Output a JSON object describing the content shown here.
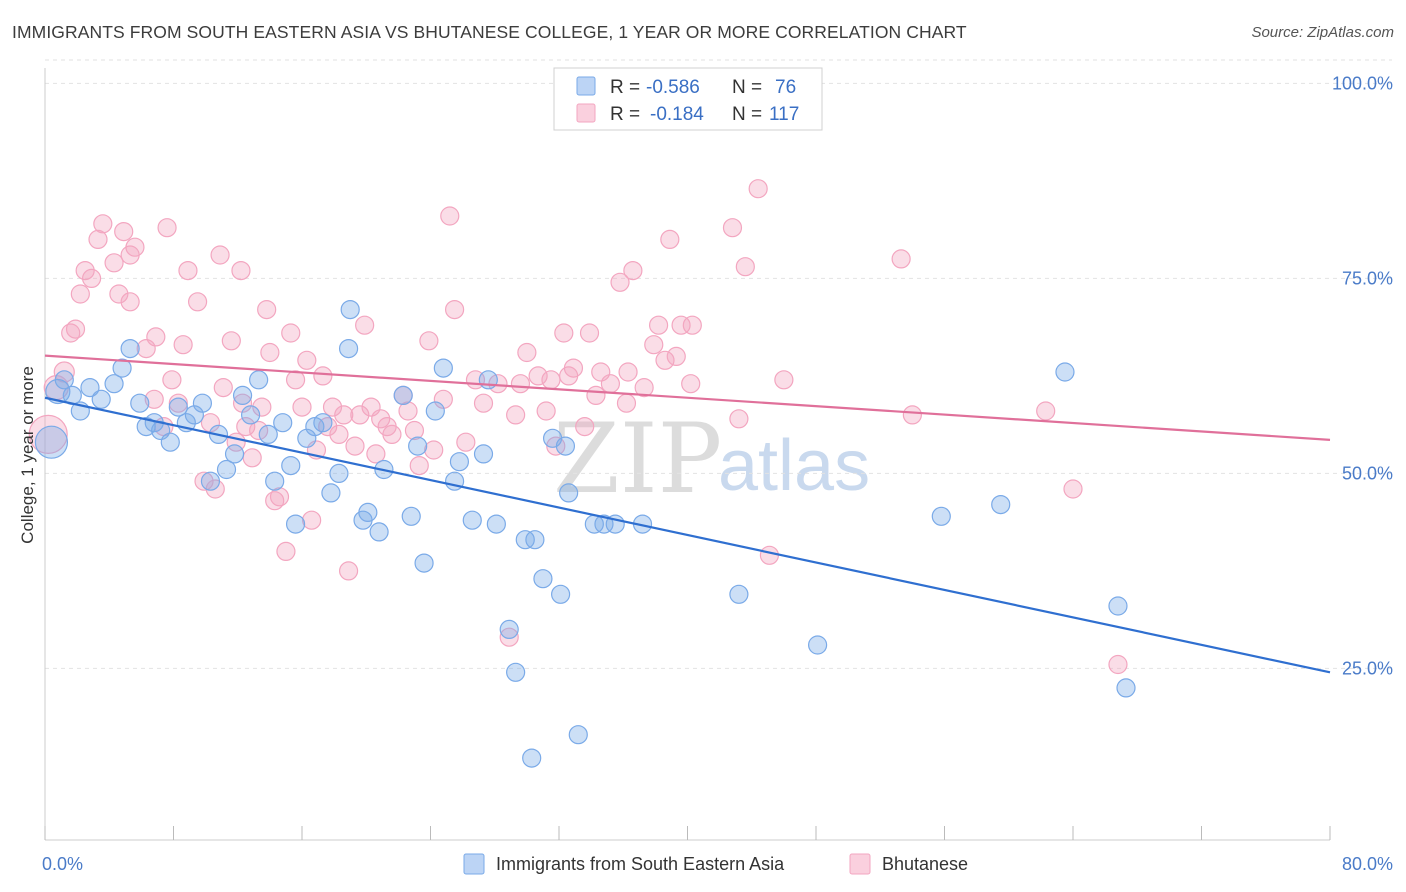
{
  "title": "IMMIGRANTS FROM SOUTH EASTERN ASIA VS BHUTANESE COLLEGE, 1 YEAR OR MORE CORRELATION CHART",
  "source": "Source: ZipAtlas.com",
  "watermark": {
    "zip": "ZIP",
    "atlas": "atlas"
  },
  "legend_top": {
    "rows": [
      {
        "r_label": "R =",
        "r_value": "-0.586",
        "n_label": "N =",
        "n_value": "76"
      },
      {
        "r_label": "R =",
        "r_value": "-0.184",
        "n_label": "N =",
        "n_value": "117"
      }
    ]
  },
  "chart_data": {
    "type": "scatter",
    "xlabel": "",
    "ylabel": "College, 1 year or more",
    "xlim": [
      0,
      80
    ],
    "ylim": [
      3,
      103
    ],
    "x_tick_labels": [
      "0.0%",
      "80.0%"
    ],
    "y_ticks": [
      25,
      50,
      75,
      100
    ],
    "y_tick_labels": [
      "25.0%",
      "50.0%",
      "75.0%",
      "100.0%"
    ],
    "grid": "horizontal dashed",
    "legend_position": "bottom",
    "series": [
      {
        "name": "Immigrants from South Eastern Asia",
        "color": "#7aaae8",
        "line_color": "#2f6fd0",
        "trend": {
          "x": [
            0,
            80
          ],
          "y": [
            59.7,
            24.5
          ]
        },
        "points": [
          [
            0.4,
            54,
            16
          ],
          [
            0.8,
            60.5,
            12
          ],
          [
            1.2,
            62,
            9
          ],
          [
            1.7,
            60,
            9
          ],
          [
            2.2,
            58,
            9
          ],
          [
            2.8,
            61,
            9
          ],
          [
            3.5,
            59.5,
            9
          ],
          [
            4.3,
            61.5,
            9
          ],
          [
            4.8,
            63.5,
            9
          ],
          [
            5.3,
            66,
            9
          ],
          [
            5.9,
            59,
            9
          ],
          [
            6.3,
            56,
            9
          ],
          [
            6.8,
            56.5,
            9
          ],
          [
            7.2,
            55.5,
            9
          ],
          [
            7.8,
            54,
            9
          ],
          [
            8.3,
            58.5,
            9
          ],
          [
            8.8,
            56.5,
            9
          ],
          [
            9.3,
            57.5,
            9
          ],
          [
            9.8,
            59,
            9
          ],
          [
            10.3,
            49,
            9
          ],
          [
            10.8,
            55,
            9
          ],
          [
            11.3,
            50.5,
            9
          ],
          [
            11.8,
            52.5,
            9
          ],
          [
            12.3,
            60,
            9
          ],
          [
            12.8,
            57.5,
            9
          ],
          [
            13.3,
            62,
            9
          ],
          [
            13.9,
            55,
            9
          ],
          [
            14.3,
            49,
            9
          ],
          [
            14.8,
            56.5,
            9
          ],
          [
            15.3,
            51,
            9
          ],
          [
            15.6,
            43.5,
            9
          ],
          [
            16.3,
            54.5,
            9
          ],
          [
            16.8,
            56,
            9
          ],
          [
            17.3,
            56.5,
            9
          ],
          [
            17.8,
            47.5,
            9
          ],
          [
            18.3,
            50,
            9
          ],
          [
            18.9,
            66,
            9
          ],
          [
            19.0,
            71,
            9
          ],
          [
            19.8,
            44,
            9
          ],
          [
            20.1,
            45,
            9
          ],
          [
            20.8,
            42.5,
            9
          ],
          [
            21.1,
            50.5,
            9
          ],
          [
            22.3,
            60,
            9
          ],
          [
            22.8,
            44.5,
            9
          ],
          [
            23.2,
            53.5,
            9
          ],
          [
            23.6,
            38.5,
            9
          ],
          [
            24.3,
            58,
            9
          ],
          [
            24.8,
            63.5,
            9
          ],
          [
            25.5,
            49,
            9
          ],
          [
            25.8,
            51.5,
            9
          ],
          [
            26.6,
            44,
            9
          ],
          [
            27.3,
            52.5,
            9
          ],
          [
            27.6,
            62,
            9
          ],
          [
            28.1,
            43.5,
            9
          ],
          [
            28.9,
            30,
            9
          ],
          [
            29.3,
            24.5,
            9
          ],
          [
            29.9,
            41.5,
            9
          ],
          [
            30.5,
            41.5,
            9
          ],
          [
            30.3,
            13.5,
            9
          ],
          [
            31.0,
            36.5,
            9
          ],
          [
            31.6,
            54.5,
            9
          ],
          [
            32.1,
            34.5,
            9
          ],
          [
            32.6,
            47.5,
            9
          ],
          [
            33.2,
            16.5,
            9
          ],
          [
            34.2,
            43.5,
            9
          ],
          [
            34.8,
            43.5,
            9
          ],
          [
            35.5,
            43.5,
            9
          ],
          [
            37.2,
            43.5,
            9
          ],
          [
            43.2,
            34.5,
            9
          ],
          [
            48.1,
            28,
            9
          ],
          [
            55.8,
            44.5,
            9
          ],
          [
            59.5,
            46,
            9
          ],
          [
            63.5,
            63,
            9
          ],
          [
            66.8,
            33,
            9
          ],
          [
            67.3,
            22.5,
            9
          ],
          [
            32.4,
            53.5,
            9
          ]
        ]
      },
      {
        "name": "Bhutanese",
        "color": "#f3a6c0",
        "line_color": "#e0709a",
        "trend": {
          "x": [
            0,
            80
          ],
          "y": [
            65.1,
            54.3
          ]
        },
        "points": [
          [
            0.2,
            55,
            19
          ],
          [
            0.7,
            61,
            12
          ],
          [
            1.2,
            63,
            10
          ],
          [
            1.6,
            68,
            9
          ],
          [
            1.9,
            68.5,
            9
          ],
          [
            2.2,
            73,
            9
          ],
          [
            2.5,
            76,
            9
          ],
          [
            2.9,
            75,
            9
          ],
          [
            3.3,
            80,
            9
          ],
          [
            3.6,
            82,
            9
          ],
          [
            4.3,
            77,
            9
          ],
          [
            4.6,
            73,
            9
          ],
          [
            4.9,
            81,
            9
          ],
          [
            5.3,
            78,
            9
          ],
          [
            5.6,
            79,
            9
          ],
          [
            5.3,
            72,
            9
          ],
          [
            6.3,
            66,
            9
          ],
          [
            6.8,
            59.5,
            9
          ],
          [
            6.9,
            67.5,
            9
          ],
          [
            7.4,
            56,
            9
          ],
          [
            7.6,
            81.5,
            9
          ],
          [
            7.9,
            62,
            9
          ],
          [
            8.3,
            59,
            9
          ],
          [
            8.6,
            66.5,
            9
          ],
          [
            8.9,
            76,
            9
          ],
          [
            9.5,
            72,
            9
          ],
          [
            9.9,
            49,
            9
          ],
          [
            10.3,
            56.5,
            9
          ],
          [
            10.6,
            48,
            9
          ],
          [
            11.1,
            61,
            9
          ],
          [
            10.9,
            78,
            9
          ],
          [
            11.6,
            67,
            9
          ],
          [
            11.9,
            54,
            9
          ],
          [
            12.2,
            76,
            9
          ],
          [
            12.5,
            56,
            9
          ],
          [
            12.9,
            52,
            9
          ],
          [
            13.3,
            55.5,
            9
          ],
          [
            13.5,
            58.5,
            9
          ],
          [
            13.8,
            71,
            9
          ],
          [
            14.0,
            65.5,
            9
          ],
          [
            14.3,
            46.5,
            9
          ],
          [
            14.6,
            47,
            9
          ],
          [
            15.0,
            40,
            9
          ],
          [
            15.3,
            68,
            9
          ],
          [
            15.6,
            62,
            9
          ],
          [
            16.0,
            58.5,
            9
          ],
          [
            16.3,
            64.5,
            9
          ],
          [
            16.6,
            44,
            9
          ],
          [
            16.9,
            53,
            9
          ],
          [
            17.3,
            62.5,
            9
          ],
          [
            17.6,
            56,
            9
          ],
          [
            17.9,
            58.5,
            9
          ],
          [
            18.3,
            55,
            9
          ],
          [
            18.6,
            57.5,
            9
          ],
          [
            18.9,
            37.5,
            9
          ],
          [
            19.3,
            53.5,
            9
          ],
          [
            19.6,
            57.5,
            9
          ],
          [
            19.9,
            69,
            9
          ],
          [
            20.3,
            58.5,
            9
          ],
          [
            20.6,
            52.5,
            9
          ],
          [
            20.9,
            57,
            9
          ],
          [
            21.3,
            56,
            9
          ],
          [
            21.6,
            55,
            9
          ],
          [
            22.3,
            60,
            9
          ],
          [
            22.6,
            58,
            9
          ],
          [
            23.0,
            55.5,
            9
          ],
          [
            23.3,
            51,
            9
          ],
          [
            23.9,
            67,
            9
          ],
          [
            24.2,
            53,
            9
          ],
          [
            24.8,
            59.5,
            9
          ],
          [
            25.2,
            83,
            9
          ],
          [
            25.5,
            71,
            9
          ],
          [
            26.2,
            54,
            9
          ],
          [
            26.8,
            62,
            9
          ],
          [
            27.3,
            59,
            9
          ],
          [
            28.2,
            61.5,
            9
          ],
          [
            28.9,
            29,
            9
          ],
          [
            29.3,
            57.5,
            9
          ],
          [
            29.6,
            61.5,
            9
          ],
          [
            30.0,
            65.5,
            9
          ],
          [
            30.7,
            62.5,
            9
          ],
          [
            31.2,
            58,
            9
          ],
          [
            31.5,
            62,
            9
          ],
          [
            31.8,
            53.5,
            9
          ],
          [
            32.3,
            68,
            9
          ],
          [
            32.6,
            62.5,
            9
          ],
          [
            32.9,
            63.5,
            9
          ],
          [
            33.6,
            56,
            9
          ],
          [
            33.9,
            68,
            9
          ],
          [
            34.3,
            60,
            9
          ],
          [
            34.6,
            63,
            9
          ],
          [
            35.2,
            61.5,
            9
          ],
          [
            35.8,
            74.5,
            9
          ],
          [
            36.3,
            63,
            9
          ],
          [
            36.6,
            76,
            9
          ],
          [
            37.3,
            61,
            9
          ],
          [
            37.9,
            66.5,
            9
          ],
          [
            38.2,
            69,
            9
          ],
          [
            38.6,
            64.5,
            9
          ],
          [
            38.9,
            80,
            9
          ],
          [
            39.3,
            65,
            9
          ],
          [
            39.6,
            69,
            9
          ],
          [
            40.3,
            69,
            9
          ],
          [
            42.8,
            81.5,
            9
          ],
          [
            43.2,
            57,
            9
          ],
          [
            43.6,
            76.5,
            9
          ],
          [
            44.4,
            86.5,
            9
          ],
          [
            45.1,
            39.5,
            9
          ],
          [
            46.0,
            62,
            9
          ],
          [
            53.3,
            77.5,
            9
          ],
          [
            54.0,
            57.5,
            9
          ],
          [
            62.3,
            58,
            9
          ],
          [
            64.0,
            48,
            9
          ],
          [
            66.8,
            25.5,
            9
          ],
          [
            40.2,
            61.5,
            9
          ],
          [
            36.2,
            59,
            9
          ],
          [
            12.3,
            59,
            9
          ]
        ]
      }
    ]
  }
}
